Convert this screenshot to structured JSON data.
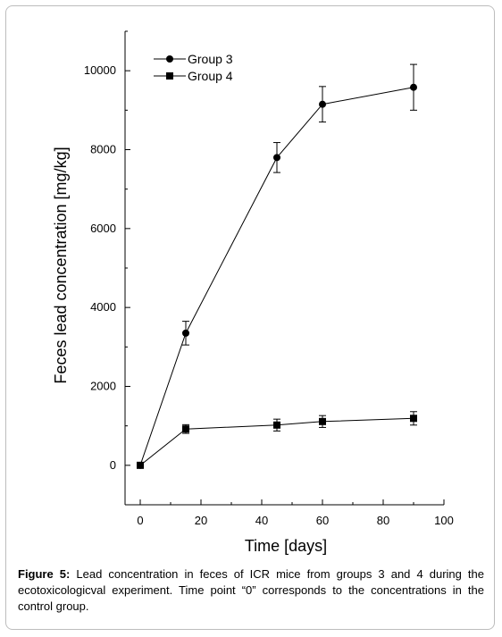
{
  "chart_data": {
    "type": "line",
    "xlabel": "Time [days]",
    "ylabel": "Feces lead concentration [mg/kg]",
    "xlim": [
      -5,
      100
    ],
    "ylim": [
      -1000,
      11000
    ],
    "x_ticks": [
      0,
      20,
      40,
      60,
      80,
      100
    ],
    "y_ticks": [
      0,
      2000,
      4000,
      6000,
      8000,
      10000
    ],
    "x": [
      0,
      15,
      45,
      60,
      90
    ],
    "series": [
      {
        "name": "Group 3",
        "marker": "circle",
        "values": [
          0,
          3350,
          7800,
          9150,
          9580
        ],
        "errors": [
          0,
          300,
          380,
          450,
          580
        ]
      },
      {
        "name": "Group 4",
        "marker": "square",
        "values": [
          0,
          920,
          1020,
          1110,
          1190
        ],
        "errors": [
          0,
          110,
          150,
          150,
          170
        ]
      }
    ],
    "grid": false,
    "legend_position": "top-left"
  },
  "caption": {
    "label": "Figure 5:",
    "text": " Lead concentration in feces of ICR mice from groups 3 and 4 during the ecotoxicologicval experiment. Time point “0” corresponds to the concentrations in the control group."
  },
  "colors": {
    "line": "#000000",
    "frame": "#bdbdbd"
  }
}
